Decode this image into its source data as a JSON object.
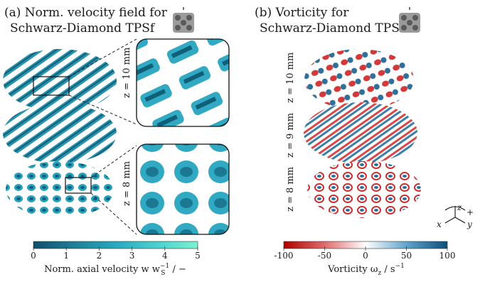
{
  "panel_a": {
    "title_line1": "(a) Norm. velocity field for",
    "title_line2": "Schwarz-Diamond TPSf",
    "zoom_labels": [
      "z = 10 mm",
      "z = 8 mm"
    ],
    "colorbar": {
      "ticks": [
        "0",
        "1",
        "2",
        "3",
        "4",
        "5"
      ],
      "label": "Norm. axial velocity w w",
      "label_sub": "S",
      "label_sup": "−1",
      "label_tail": " / −",
      "colors": [
        "#0f4f6c",
        "#1f7f98",
        "#26a9bf",
        "#4bd0cf",
        "#79f2d0"
      ]
    }
  },
  "panel_b": {
    "title_line1": "(b) Vorticity for",
    "title_line2": "Schwarz-Diamond TPSf",
    "slice_labels": [
      "z = 10 mm",
      "z = 9 mm",
      "z = 8 mm"
    ],
    "colorbar": {
      "ticks": [
        "-100",
        "-50",
        "0",
        "50",
        "100"
      ],
      "label": "Vorticity ω",
      "label_sub": "z",
      "label_tail": " / s",
      "label_sup": "−1",
      "colors": [
        "#b00000",
        "#e06b6b",
        "#ffffff",
        "#5fa4cc",
        "#0c4f7c"
      ]
    }
  },
  "axes_glyph": {
    "x": "x",
    "y": "y",
    "z": "z",
    "plus": "+"
  }
}
